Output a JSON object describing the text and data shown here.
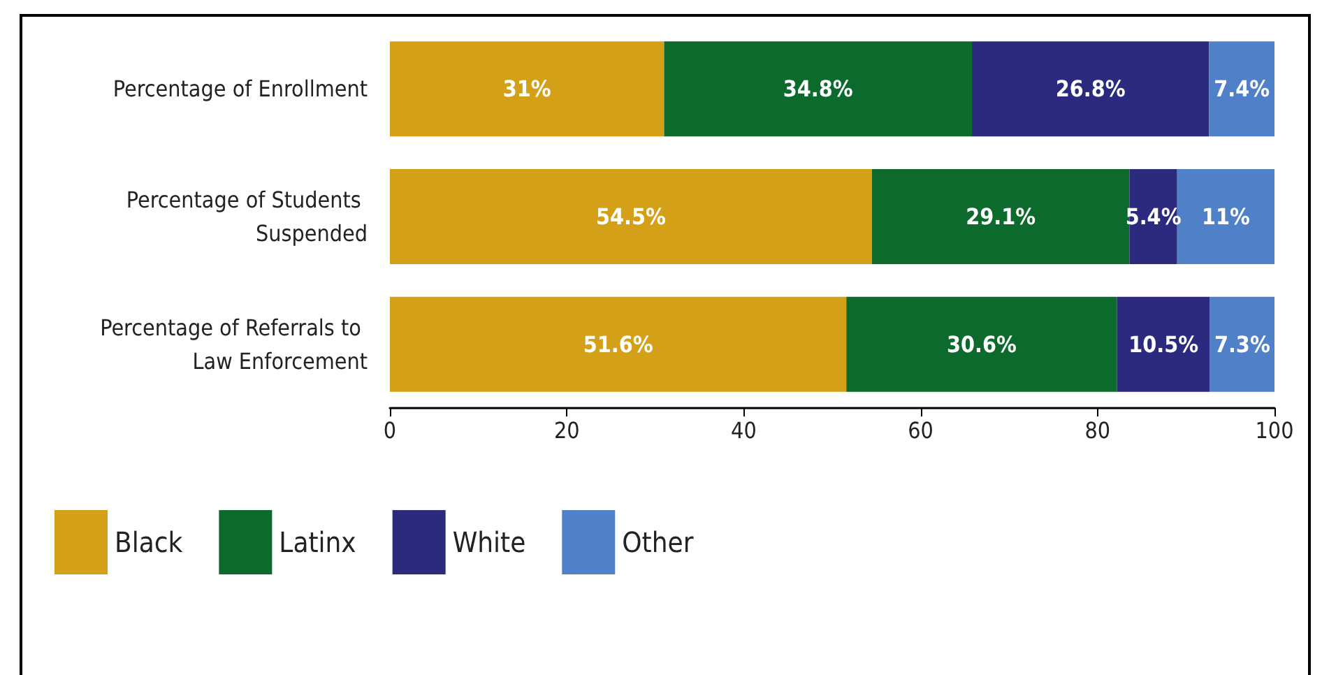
{
  "chart_data": {
    "type": "bar",
    "orientation": "horizontal",
    "stacked": true,
    "categories": [
      "Percentage of Enrollment",
      "Percentage of Students Suspended",
      "Percentage of Referrals to Law Enforcement"
    ],
    "series": [
      {
        "name": "Black",
        "color": "#d4a017",
        "values": [
          31,
          54.5,
          51.6
        ],
        "value_labels": [
          "31%",
          "54.5%",
          "51.6%"
        ]
      },
      {
        "name": "Latinx",
        "color": "#0b6a2c",
        "values": [
          34.8,
          29.1,
          30.6
        ],
        "value_labels": [
          "34.8%",
          "29.1%",
          "30.6%"
        ]
      },
      {
        "name": "White",
        "color": "#2c2a7e",
        "values": [
          26.8,
          5.4,
          10.5
        ],
        "value_labels": [
          "26.8%",
          "5.4%",
          "10.5%"
        ]
      },
      {
        "name": "Other",
        "color": "#4f80c8",
        "values": [
          7.4,
          11,
          7.3
        ],
        "value_labels": [
          "7.4%",
          "11%",
          "7.3%"
        ]
      }
    ],
    "xlim": [
      0,
      100
    ],
    "xticks": [
      0,
      20,
      40,
      60,
      80,
      100
    ],
    "grid": false,
    "legend": "bottom left"
  }
}
